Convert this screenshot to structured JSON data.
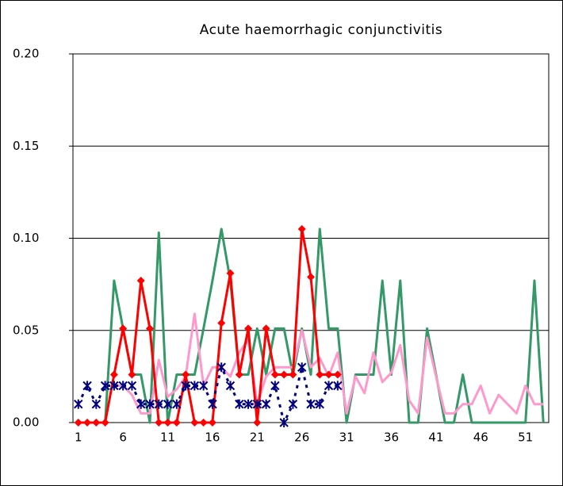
{
  "chart_data": {
    "type": "line",
    "title": "Acute haemorrhagic conjunctivitis",
    "x": [
      1,
      2,
      3,
      4,
      5,
      6,
      7,
      8,
      9,
      10,
      11,
      12,
      13,
      14,
      15,
      16,
      17,
      18,
      19,
      20,
      21,
      22,
      23,
      24,
      25,
      26,
      27,
      28,
      29,
      30,
      31,
      32,
      33,
      34,
      35,
      36,
      37,
      38,
      39,
      40,
      41,
      42,
      43,
      44,
      45,
      46,
      47,
      48,
      49,
      50,
      51,
      52,
      53
    ],
    "xlim": [
      0.4,
      53.6
    ],
    "xticks": [
      1,
      6,
      11,
      16,
      21,
      26,
      31,
      36,
      41,
      46,
      51
    ],
    "ylim": [
      0,
      0.2
    ],
    "yticks": [
      {
        "value": 0,
        "label": "0.00"
      },
      {
        "value": 0.05,
        "label": "0.05"
      },
      {
        "value": 0.1,
        "label": "0.10"
      },
      {
        "value": 0.15,
        "label": "0.15"
      },
      {
        "value": 0.2,
        "label": "0.20"
      }
    ],
    "grid": true,
    "series": [
      {
        "color": "#339966",
        "marker": "none",
        "dashed": false,
        "values": [
          0,
          0,
          0,
          0,
          0.077,
          0.051,
          0.026,
          0.026,
          0,
          0.103,
          0,
          0.026,
          0.026,
          0.026,
          0.051,
          0.077,
          0.105,
          0.077,
          0.026,
          0.026,
          0.051,
          0.026,
          0.051,
          0.051,
          0.026,
          0.051,
          0.026,
          0.105,
          0.051,
          0.051,
          0,
          0.026,
          0.026,
          0.026,
          0.077,
          0.026,
          0.077,
          0,
          0,
          0.051,
          0.026,
          0,
          0,
          0.026,
          0,
          0,
          0,
          0,
          0,
          0,
          0,
          0.077,
          0
        ]
      },
      {
        "color": "#ff99cc",
        "marker": "none",
        "dashed": false,
        "values": [
          null,
          null,
          null,
          null,
          0.02,
          0.02,
          0.015,
          0.005,
          0.005,
          0.034,
          0.014,
          0.018,
          0.025,
          0.059,
          0.02,
          0.03,
          0.03,
          0.025,
          0.038,
          0.045,
          0.01,
          0.025,
          0.03,
          0.03,
          0.03,
          0.05,
          0.03,
          0.035,
          0.025,
          0.038,
          0.005,
          0.025,
          0.016,
          0.038,
          0.022,
          0.027,
          0.042,
          0.012,
          0.005,
          0.046,
          0.025,
          0.005,
          0.005,
          0.01,
          0.01,
          0.02,
          0.005,
          0.015,
          0.01,
          0.005,
          0.02,
          0.01,
          0.01
        ]
      },
      {
        "color": "#ff0000",
        "marker": "diamond",
        "dashed": false,
        "values": [
          0,
          0,
          0,
          0,
          0.026,
          0.051,
          0.026,
          0.077,
          0.051,
          0,
          0,
          0,
          0.026,
          0,
          0,
          0,
          0.054,
          0.081,
          0.026,
          0.051,
          0,
          0.051,
          0.026,
          0.026,
          0.026,
          0.105,
          0.079,
          0.026,
          0.026,
          0.026,
          null,
          null,
          null,
          null,
          null,
          null,
          null,
          null,
          null,
          null,
          null,
          null,
          null,
          null,
          null,
          null,
          null,
          null,
          null,
          null,
          null,
          null,
          null
        ]
      },
      {
        "color": "#000080",
        "marker": "asterisk",
        "dashed": true,
        "values": [
          0.01,
          0.02,
          0.01,
          0.02,
          0.02,
          0.02,
          0.02,
          0.01,
          0.01,
          0.01,
          0.01,
          0.01,
          0.02,
          0.02,
          0.02,
          0.01,
          0.03,
          0.02,
          0.01,
          0.01,
          0.01,
          0.01,
          0.02,
          0,
          0.01,
          0.03,
          0.01,
          0.01,
          0.02,
          0.02,
          null,
          null,
          null,
          null,
          null,
          null,
          null,
          null,
          null,
          null,
          null,
          null,
          null,
          null,
          null,
          null,
          null,
          null,
          null,
          null,
          null,
          null,
          null
        ]
      }
    ]
  }
}
